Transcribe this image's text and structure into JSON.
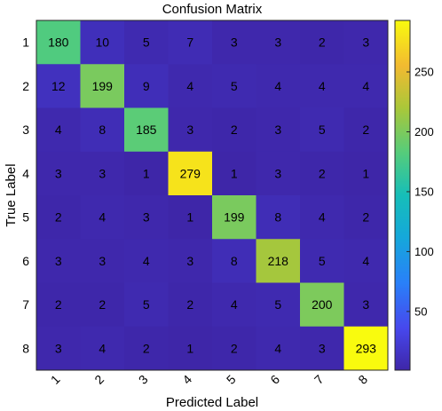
{
  "chart_data": {
    "type": "heatmap",
    "title": "Confusion Matrix",
    "xlabel": "Predicted Label",
    "ylabel": "True Label",
    "x_categories": [
      "1",
      "2",
      "3",
      "4",
      "5",
      "6",
      "7",
      "8"
    ],
    "y_categories": [
      "1",
      "2",
      "3",
      "4",
      "5",
      "6",
      "7",
      "8"
    ],
    "values": [
      [
        180,
        10,
        5,
        7,
        3,
        3,
        2,
        3
      ],
      [
        12,
        199,
        9,
        4,
        5,
        4,
        4,
        4
      ],
      [
        4,
        8,
        185,
        3,
        2,
        3,
        5,
        2
      ],
      [
        3,
        3,
        1,
        279,
        1,
        3,
        2,
        1
      ],
      [
        2,
        4,
        3,
        1,
        199,
        8,
        4,
        2
      ],
      [
        3,
        3,
        4,
        3,
        8,
        218,
        5,
        4
      ],
      [
        2,
        2,
        5,
        2,
        4,
        5,
        200,
        3
      ],
      [
        3,
        4,
        2,
        1,
        2,
        4,
        3,
        293
      ]
    ],
    "colormap": "parula",
    "colorbar": {
      "range": [
        1,
        293
      ],
      "ticks": [
        50,
        100,
        150,
        200,
        250
      ]
    }
  }
}
